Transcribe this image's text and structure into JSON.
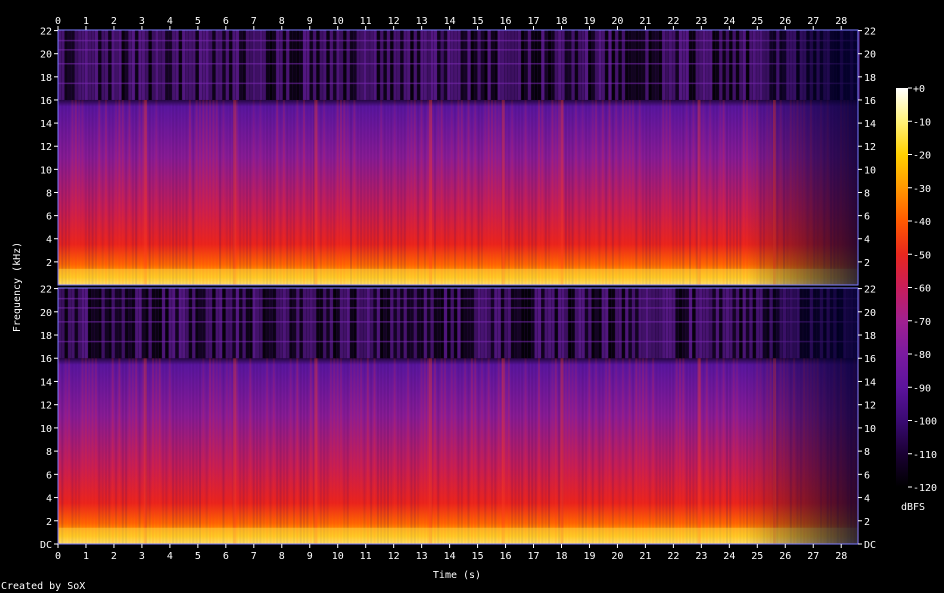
{
  "chart_data": {
    "type": "heatmap",
    "title": "",
    "xlabel": "Time (s)",
    "ylabel": "Frequency (kHz)",
    "x_range": [
      0,
      28.6
    ],
    "x_ticks": [
      0,
      1,
      2,
      3,
      4,
      5,
      6,
      7,
      8,
      9,
      10,
      11,
      12,
      13,
      14,
      15,
      16,
      17,
      18,
      19,
      20,
      21,
      22,
      23,
      24,
      25,
      26,
      27,
      28
    ],
    "y_range_khz": [
      0,
      22.05
    ],
    "y_ticks": [
      {
        "value": 0,
        "label": "DC"
      },
      {
        "value": 2,
        "label": "2"
      },
      {
        "value": 4,
        "label": "4"
      },
      {
        "value": 6,
        "label": "6"
      },
      {
        "value": 8,
        "label": "8"
      },
      {
        "value": 10,
        "label": "10"
      },
      {
        "value": 12,
        "label": "12"
      },
      {
        "value": 14,
        "label": "14"
      },
      {
        "value": 16,
        "label": "16"
      },
      {
        "value": 18,
        "label": "18"
      },
      {
        "value": 20,
        "label": "20"
      },
      {
        "value": 22,
        "label": "22"
      }
    ],
    "channels": 2,
    "colorbar": {
      "label": "dBFS",
      "range": [
        -120,
        0
      ],
      "ticks": [
        "+0",
        "-10",
        "-20",
        "-30",
        "-40",
        "-50",
        "-60",
        "-70",
        "-80",
        "-90",
        "-100",
        "-110",
        "-120"
      ],
      "colors": [
        "#000000",
        "#1a0033",
        "#3a0a73",
        "#5c139c",
        "#7a1aa0",
        "#a02090",
        "#c81d5a",
        "#e8271e",
        "#ff5a00",
        "#ff9800",
        "#ffd000",
        "#fff27a",
        "#ffffff"
      ]
    },
    "lowpass_cutoff_khz": 16,
    "segment_boundaries_s": [
      3.1,
      6.3,
      9.2,
      13.3,
      15.9,
      18.0,
      22.9,
      25.6
    ],
    "grid": false,
    "legend": "right"
  },
  "footer": {
    "credit": "Created by SoX"
  }
}
